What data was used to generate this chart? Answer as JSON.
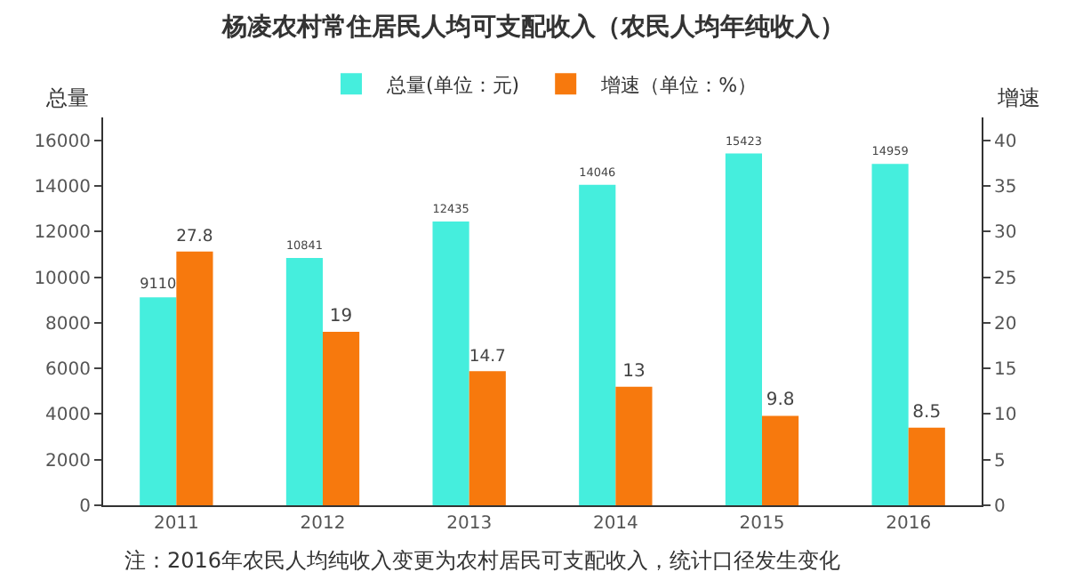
{
  "chart_data": {
    "type": "bar",
    "title": "杨凌农村常住居民人均可支配收入（农民人均年纯收入）",
    "ylabel": "总量",
    "y2label": "增速",
    "categories": [
      "2011",
      "2012",
      "2013",
      "2014",
      "2015",
      "2016"
    ],
    "series": [
      {
        "name": "总量(单位：元)",
        "color": "#45eedd",
        "values": [
          9110,
          10841,
          12435,
          14046,
          15423,
          14959
        ]
      },
      {
        "name": "增速（单位：%）",
        "color": "#f7790d",
        "values": [
          27.8,
          19,
          14.7,
          13,
          9.8,
          8.5
        ],
        "axis": "y2"
      }
    ],
    "ylim": [
      0,
      17000
    ],
    "yticks": [
      0,
      2000,
      4000,
      6000,
      8000,
      10000,
      12000,
      14000,
      16000
    ],
    "y2lim": [
      0,
      42.5
    ],
    "y2ticks": [
      0,
      5,
      10,
      15,
      20,
      25,
      30,
      35,
      40
    ],
    "data_labels": true,
    "grid": false,
    "legend": "top",
    "annotations": [
      "注：2016年农民人均纯收入变更为农村居民可支配收入，统计口径发生变化"
    ]
  }
}
